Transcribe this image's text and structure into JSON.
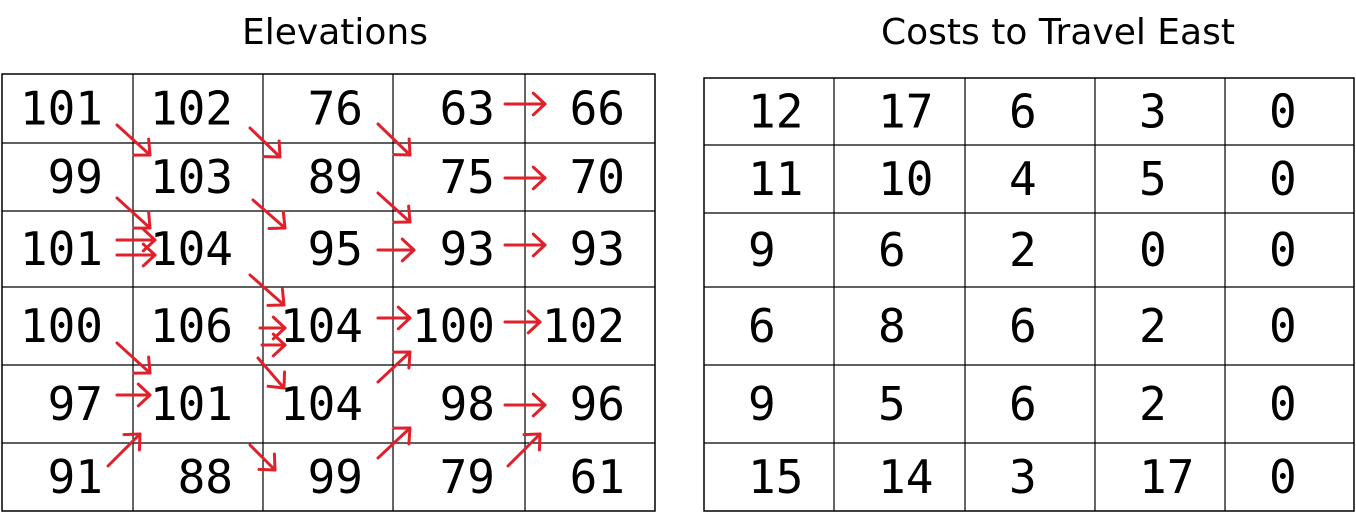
{
  "elevations": {
    "title": "Elevations",
    "rows": [
      [
        "101",
        "102",
        "76",
        "63",
        "66"
      ],
      [
        "99",
        "103",
        "89",
        "75",
        "70"
      ],
      [
        "101",
        "104",
        "95",
        "93",
        "93"
      ],
      [
        "100",
        "106",
        "104",
        "100",
        "102"
      ],
      [
        "97",
        "101",
        "104",
        "98",
        "96"
      ],
      [
        "91",
        "88",
        "99",
        "79",
        "61"
      ]
    ],
    "arrow_color": "#e0202a"
  },
  "costs": {
    "title": "Costs to Travel East",
    "rows": [
      [
        "12",
        "17",
        "6",
        "3",
        "0"
      ],
      [
        "11",
        "10",
        "4",
        "5",
        "0"
      ],
      [
        "9",
        "6",
        "2",
        "0",
        "0"
      ],
      [
        "6",
        "8",
        "6",
        "2",
        "0"
      ],
      [
        "9",
        "5",
        "6",
        "2",
        "0"
      ],
      [
        "15",
        "14",
        "3",
        "17",
        "0"
      ]
    ]
  }
}
